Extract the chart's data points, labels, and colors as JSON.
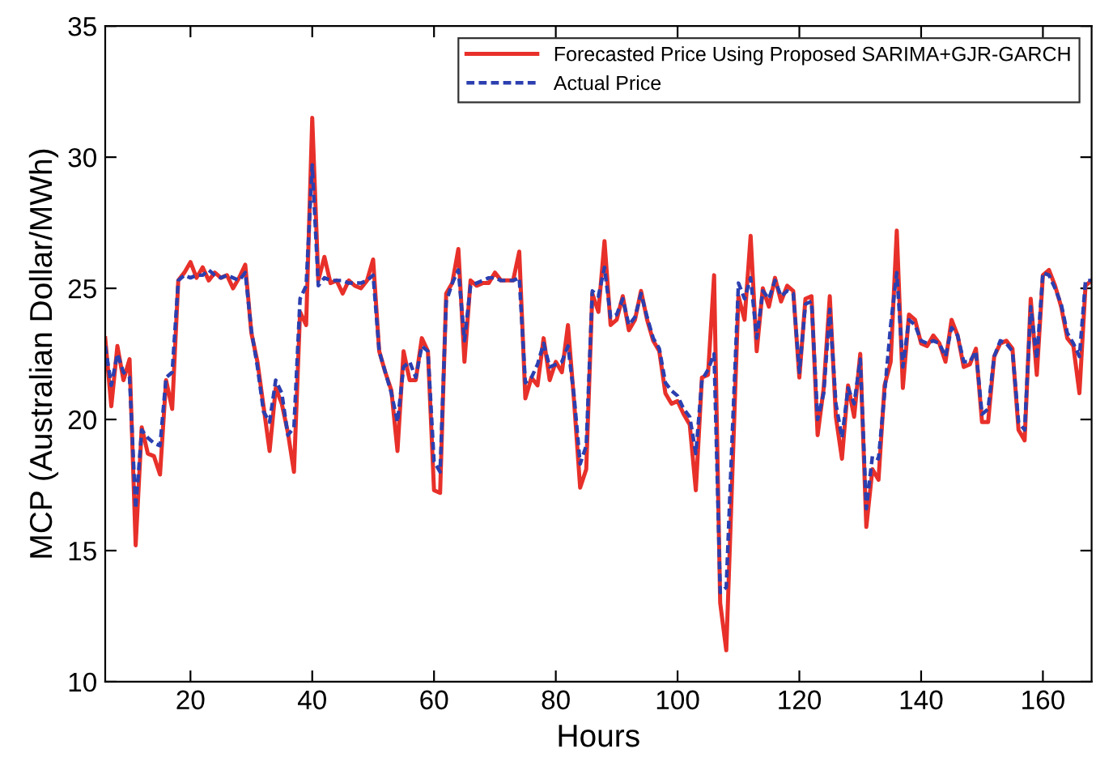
{
  "chart_data": {
    "type": "line",
    "xlabel": "Hours",
    "ylabel": "MCP (Australian Dollar/MWh)",
    "xlim": [
      6,
      168
    ],
    "xticks": [
      20,
      40,
      60,
      80,
      100,
      120,
      140,
      160
    ],
    "ylim": [
      10,
      35
    ],
    "yticks": [
      10,
      15,
      20,
      25,
      30,
      35
    ],
    "grid": false,
    "legend": "top right",
    "series": [
      {
        "name": "Forecasted Price Using Proposed SARIMA+GJR-GARCH",
        "color": "#e8302a",
        "line_style": "solid",
        "x": [
          6,
          7,
          8,
          9,
          10,
          11,
          12,
          13,
          14,
          15,
          16,
          17,
          18,
          19,
          20,
          21,
          22,
          23,
          24,
          25,
          26,
          27,
          28,
          29,
          30,
          31,
          32,
          33,
          34,
          35,
          36,
          37,
          38,
          39,
          40,
          41,
          42,
          43,
          44,
          45,
          46,
          47,
          48,
          49,
          50,
          51,
          52,
          53,
          54,
          55,
          56,
          57,
          58,
          59,
          60,
          61,
          62,
          63,
          64,
          65,
          66,
          67,
          68,
          69,
          70,
          71,
          72,
          73,
          74,
          75,
          76,
          77,
          78,
          79,
          80,
          81,
          82,
          83,
          84,
          85,
          86,
          87,
          88,
          89,
          90,
          91,
          92,
          93,
          94,
          95,
          96,
          97,
          98,
          99,
          100,
          101,
          102,
          103,
          104,
          105,
          106,
          107,
          108,
          110,
          111,
          112,
          113,
          114,
          115,
          116,
          117,
          118,
          119,
          120,
          121,
          122,
          123,
          124,
          125,
          126,
          127,
          128,
          129,
          130,
          131,
          132,
          133,
          134,
          135,
          136,
          137,
          138,
          139,
          140,
          141,
          142,
          143,
          144,
          145,
          146,
          147,
          148,
          149,
          150,
          151,
          152,
          153,
          154,
          155,
          156,
          157,
          158,
          159,
          160,
          161,
          162,
          163,
          164,
          165,
          166,
          167,
          168
        ],
        "values": [
          23.1,
          20.5,
          22.8,
          21.5,
          22.3,
          15.2,
          19.7,
          18.7,
          18.6,
          17.9,
          21.5,
          20.4,
          25.3,
          25.6,
          26.0,
          25.4,
          25.8,
          25.3,
          25.6,
          25.4,
          25.5,
          25.0,
          25.4,
          25.9,
          23.3,
          22.2,
          20.5,
          18.8,
          21.2,
          20.6,
          19.5,
          18.0,
          24.1,
          23.6,
          31.5,
          25.3,
          26.2,
          25.2,
          25.3,
          24.8,
          25.3,
          25.1,
          25.0,
          25.3,
          26.1,
          22.6,
          21.8,
          21.1,
          18.8,
          22.6,
          21.5,
          21.5,
          23.1,
          22.6,
          17.3,
          17.2,
          24.8,
          25.2,
          26.5,
          22.2,
          25.3,
          25.1,
          25.2,
          25.2,
          25.6,
          25.3,
          25.3,
          25.3,
          26.4,
          20.8,
          21.6,
          21.3,
          23.1,
          21.5,
          22.2,
          21.8,
          23.6,
          20.7,
          17.4,
          18.1,
          24.8,
          24.1,
          26.8,
          23.6,
          23.8,
          24.7,
          23.4,
          23.8,
          24.9,
          23.8,
          23.0,
          22.6,
          21.0,
          20.6,
          20.7,
          20.2,
          19.8,
          17.3,
          21.6,
          21.7,
          25.5,
          13.0,
          11.2,
          24.7,
          23.8,
          27.0,
          22.6,
          25.0,
          24.3,
          25.4,
          24.5,
          25.1,
          24.9,
          21.6,
          24.6,
          24.7,
          19.4,
          21.2,
          24.7,
          20.1,
          18.5,
          21.3,
          20.1,
          22.5,
          15.9,
          18.1,
          17.7,
          21.3,
          22.2,
          27.2,
          21.2,
          24.0,
          23.8,
          22.9,
          22.8,
          23.2,
          22.9,
          22.2,
          23.8,
          23.2,
          22.0,
          22.1,
          22.7,
          19.9,
          19.9,
          22.4,
          22.9,
          23.0,
          22.7,
          19.6,
          19.2,
          24.6,
          21.7,
          25.5,
          25.7,
          25.1,
          24.3,
          23.1,
          22.8,
          21.0,
          25.1,
          25.3
        ]
      },
      {
        "name": "Actual Price",
        "color": "#2b3fb0",
        "line_style": "dashed",
        "x": [
          6,
          7,
          8,
          9,
          10,
          11,
          12,
          13,
          14,
          15,
          16,
          17,
          18,
          19,
          20,
          21,
          22,
          23,
          24,
          25,
          26,
          27,
          28,
          29,
          30,
          31,
          32,
          33,
          34,
          35,
          36,
          37,
          38,
          39,
          40,
          41,
          42,
          43,
          44,
          45,
          46,
          47,
          48,
          49,
          50,
          51,
          52,
          53,
          54,
          55,
          56,
          57,
          58,
          59,
          60,
          61,
          62,
          63,
          64,
          65,
          66,
          67,
          68,
          69,
          70,
          71,
          72,
          73,
          74,
          75,
          76,
          77,
          78,
          79,
          80,
          81,
          82,
          83,
          84,
          85,
          86,
          87,
          88,
          89,
          90,
          91,
          92,
          93,
          94,
          95,
          96,
          97,
          98,
          99,
          100,
          101,
          102,
          103,
          104,
          105,
          106,
          107,
          108,
          109,
          110,
          111,
          112,
          113,
          114,
          115,
          116,
          117,
          118,
          119,
          120,
          121,
          122,
          123,
          124,
          125,
          126,
          127,
          128,
          129,
          130,
          131,
          132,
          133,
          134,
          135,
          136,
          137,
          138,
          139,
          140,
          141,
          142,
          143,
          144,
          145,
          146,
          147,
          148,
          149,
          150,
          151,
          152,
          153,
          154,
          155,
          156,
          157,
          158,
          159,
          160,
          161,
          162,
          163,
          164,
          165,
          166,
          167,
          168
        ],
        "values": [
          22.8,
          21.3,
          22.5,
          21.8,
          21.6,
          16.6,
          19.6,
          19.3,
          19.1,
          19.0,
          21.6,
          21.8,
          25.3,
          25.5,
          25.4,
          25.5,
          25.5,
          25.7,
          25.5,
          25.4,
          25.5,
          25.4,
          25.3,
          25.6,
          23.4,
          22.0,
          20.3,
          19.9,
          21.5,
          21.0,
          19.4,
          19.7,
          24.6,
          25.1,
          29.7,
          25.1,
          25.4,
          25.3,
          25.3,
          25.3,
          25.2,
          25.2,
          25.2,
          25.3,
          25.5,
          22.6,
          21.8,
          21.0,
          19.9,
          22.0,
          22.2,
          21.6,
          22.8,
          22.6,
          18.4,
          18.0,
          24.5,
          25.2,
          25.7,
          23.0,
          25.1,
          25.2,
          25.3,
          25.4,
          25.4,
          25.3,
          25.3,
          25.3,
          25.4,
          21.4,
          21.6,
          22.1,
          22.9,
          22.0,
          22.1,
          22.2,
          22.8,
          20.9,
          18.3,
          19.0,
          24.9,
          24.7,
          25.8,
          23.9,
          24.0,
          24.6,
          23.6,
          23.9,
          24.8,
          23.9,
          23.1,
          22.7,
          21.4,
          21.1,
          20.9,
          20.4,
          20.1,
          18.7,
          21.5,
          21.9,
          22.5,
          13.4,
          13.6,
          19.5,
          25.2,
          24.6,
          25.4,
          23.1,
          24.9,
          24.6,
          25.3,
          24.7,
          24.9,
          24.8,
          21.8,
          24.4,
          24.5,
          20.0,
          21.0,
          24.2,
          20.6,
          19.3,
          21.2,
          20.6,
          22.3,
          16.6,
          18.6,
          18.5,
          21.0,
          23.6,
          25.6,
          22.0,
          23.8,
          23.6,
          23.0,
          22.9,
          23.0,
          22.9,
          22.4,
          23.5,
          23.2,
          22.2,
          22.2,
          22.6,
          20.2,
          20.4,
          22.4,
          23.0,
          22.9,
          22.6,
          19.9,
          19.6,
          24.3,
          22.3,
          25.6,
          25.5,
          25.0,
          24.4,
          23.3,
          22.9,
          22.4,
          25.3,
          25.3
        ]
      }
    ]
  }
}
